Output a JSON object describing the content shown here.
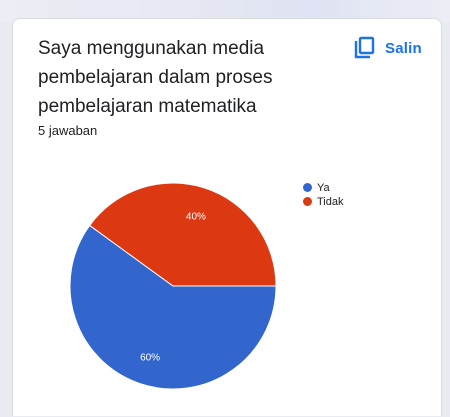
{
  "question": {
    "line1": "Saya menggunakan media",
    "line2": "pembelajaran dalam proses",
    "line3": "pembelajaran matematika"
  },
  "copy_button": {
    "label": "Salin",
    "icon": "copy-icon"
  },
  "response_count": "5 jawaban",
  "colors": {
    "accent": "#1a73e8",
    "ya": "#3366cc",
    "tidak": "#dc3912"
  },
  "chart_data": {
    "type": "pie",
    "categories": [
      "Ya",
      "Tidak"
    ],
    "values": [
      60,
      40
    ],
    "labels": [
      "60%",
      "40%"
    ],
    "colors": [
      "#3366cc",
      "#dc3912"
    ],
    "legend_position": "right"
  }
}
